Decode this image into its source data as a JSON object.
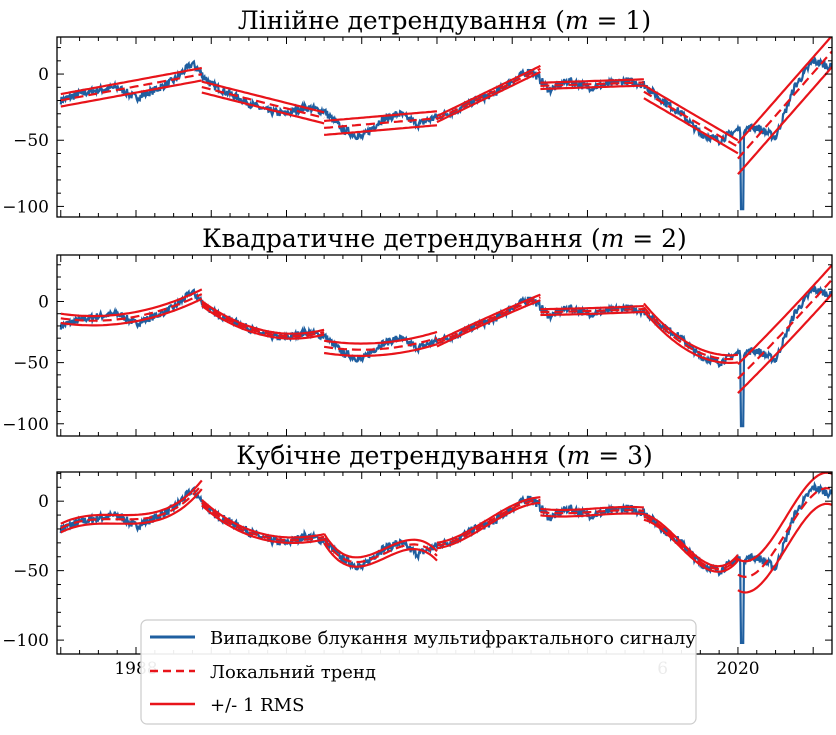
{
  "chart_data": [
    {
      "type": "line",
      "title": "Лінійне детрендування (m = 1)",
      "title_parts": {
        "text": "Лінійне детрендування (",
        "m": "m",
        "eq": " = 1)"
      },
      "ylim": [
        -108,
        28
      ],
      "yticks": [
        0,
        -50,
        -100
      ],
      "order": 1
    },
    {
      "type": "line",
      "title": "Квадратичне детрендування (m = 2)",
      "title_parts": {
        "text": "Квадратичне детрендування (",
        "m": "m",
        "eq": " = 2)"
      },
      "ylim": [
        -110,
        38
      ],
      "yticks": [
        0,
        -50,
        -100
      ],
      "order": 2
    },
    {
      "type": "line",
      "title": "Кубічне детрендування (m = 3)",
      "title_parts": {
        "text": "Кубічне детрендування (",
        "m": "m",
        "eq": " = 3)"
      },
      "ylim": [
        -110,
        21
      ],
      "yticks": [
        0,
        -50,
        -100
      ],
      "order": 3
    }
  ],
  "x_axis": {
    "xlim": [
      1983.8,
      2025.0
    ],
    "visible_tick_labels": [
      {
        "value": 1988,
        "label": "1988"
      },
      {
        "value": 2016,
        "label": "6"
      },
      {
        "value": 2020,
        "label": "2020"
      }
    ]
  },
  "series_points": {
    "year": [
      1984,
      1985,
      1986,
      1987,
      1988,
      1989,
      1990,
      1991,
      1992,
      1993,
      1994,
      1995,
      1996,
      1997,
      1998,
      1999,
      2000,
      2001,
      2002,
      2003,
      2004,
      2005,
      2006,
      2007,
      2008,
      2009,
      2010,
      2011,
      2012,
      2013,
      2014,
      2015,
      2016,
      2017,
      2018,
      2019,
      2020,
      2021,
      2022,
      2023,
      2024,
      2025
    ],
    "value": [
      -20,
      -15,
      -12,
      -10,
      -18,
      -12,
      -5,
      8,
      -8,
      -15,
      -22,
      -28,
      -30,
      -25,
      -28,
      -42,
      -48,
      -35,
      -30,
      -38,
      -32,
      -28,
      -20,
      -15,
      -5,
      3,
      -12,
      -5,
      -10,
      -8,
      -5,
      -8,
      -20,
      -30,
      -45,
      -50,
      -42,
      -40,
      -48,
      -10,
      10,
      5
    ],
    "color": "#1f5fa0"
  },
  "colors": {
    "signal": "#1f5fa0",
    "trend": "#e8141a"
  },
  "legend": {
    "placement": "lower-center",
    "entries": [
      {
        "label": "Випадкове блукання мультифрактального сигналу",
        "style": "solid-blue"
      },
      {
        "label": "Локальний тренд",
        "style": "dashed-red"
      },
      {
        "label": "+/- 1 RMS",
        "style": "solid-red"
      }
    ]
  }
}
